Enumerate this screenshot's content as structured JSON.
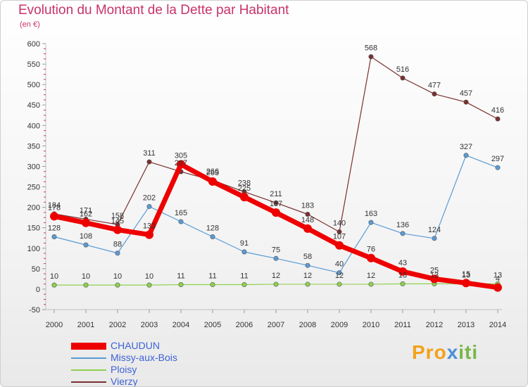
{
  "title": "Evolution du Montant de la Dette par Habitant",
  "subtitle": "(en €)",
  "logo_text": "Proxiti",
  "chart_data": {
    "type": "line",
    "x": [
      2000,
      2001,
      2002,
      2003,
      2004,
      2005,
      2006,
      2007,
      2008,
      2009,
      2010,
      2011,
      2012,
      2013,
      2014
    ],
    "ylim": [
      -50,
      600
    ],
    "yticks": [
      -50,
      0,
      50,
      100,
      150,
      200,
      250,
      300,
      350,
      400,
      450,
      500,
      550,
      600
    ],
    "grid": false,
    "legend_position": "bottom-left",
    "series": [
      {
        "name": "CHAUDUN",
        "color": "#ee0000",
        "values": [
          178,
          162,
          145,
          133,
          305,
          263,
          225,
          187,
          148,
          107,
          76,
          43,
          25,
          15,
          4
        ],
        "labels": [
          "178",
          "162",
          "145",
          "133",
          "305",
          "263",
          "225",
          "187",
          "148",
          "107",
          "76",
          "43",
          "25",
          "15",
          "4"
        ]
      },
      {
        "name": "Missy-aux-Bois",
        "color": "#5a9bd5",
        "values": [
          128,
          108,
          88,
          202,
          165,
          128,
          91,
          75,
          58,
          40,
          163,
          136,
          124,
          327,
          297
        ],
        "labels": [
          "128",
          "108",
          "88",
          "202",
          "165",
          "128",
          "91",
          "75",
          "58",
          "40",
          "163",
          "136",
          "124",
          "327",
          "297"
        ]
      },
      {
        "name": "Ploisy",
        "color": "#8fd14f",
        "values": [
          10,
          10,
          10,
          10,
          11,
          11,
          11,
          12,
          12,
          12,
          12,
          13,
          13,
          13,
          13
        ],
        "labels": [
          "10",
          "10",
          "10",
          "10",
          "11",
          "11",
          "11",
          "12",
          "12",
          "12",
          "12",
          "13",
          "13",
          "13",
          "13"
        ]
      },
      {
        "name": "Vierzy",
        "color": "#7a2f2f",
        "values": [
          184,
          171,
          158,
          311,
          287,
          266,
          238,
          211,
          183,
          140,
          568,
          516,
          477,
          457,
          416
        ],
        "labels": [
          "184",
          "171",
          "158",
          "311",
          "287",
          "266",
          "238",
          "211",
          "183",
          "140",
          "568",
          "516",
          "477",
          "457",
          "416"
        ]
      }
    ]
  }
}
